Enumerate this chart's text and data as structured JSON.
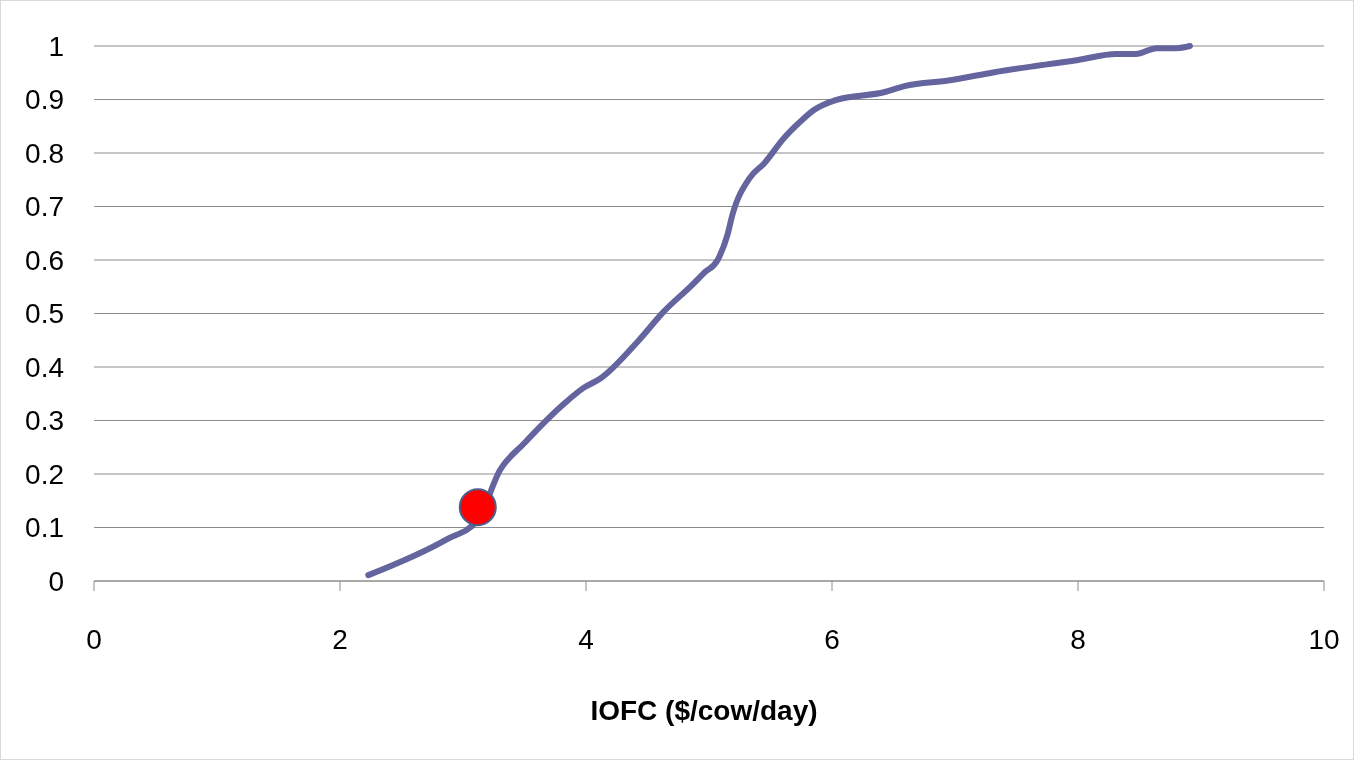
{
  "chart_data": {
    "type": "line",
    "xlabel": "IOFC ($/cow/day)",
    "xlim": [
      0,
      10
    ],
    "xticks": [
      0,
      2,
      4,
      6,
      8,
      10
    ],
    "ylim": [
      0,
      1
    ],
    "yticks": [
      0,
      0.1,
      0.2,
      0.3,
      0.4,
      0.5,
      0.6,
      0.7,
      0.8,
      0.9,
      1
    ],
    "grid": "y",
    "marker": "none",
    "line_style": "solid",
    "series": [
      {
        "color": "#64649e",
        "x": [
          2.23,
          2.86,
          3.12,
          3.3,
          3.5,
          3.81,
          3.98,
          4.12,
          4.43,
          4.63,
          4.87,
          4.96,
          5.07,
          5.15,
          5.19,
          5.33,
          5.45,
          5.61,
          5.73,
          5.85,
          6.03,
          6.43,
          6.59,
          6.96,
          7.32,
          8.0,
          8.31,
          8.47,
          8.64,
          8.8,
          8.91
        ],
        "values": [
          0.011,
          0.077,
          0.114,
          0.207,
          0.258,
          0.329,
          0.361,
          0.379,
          0.45,
          0.503,
          0.555,
          0.576,
          0.6,
          0.647,
          0.684,
          0.753,
          0.781,
          0.828,
          0.856,
          0.88,
          0.899,
          0.914,
          0.925,
          0.936,
          0.951,
          0.974,
          0.985,
          0.985,
          0.996,
          0.996,
          1.0
        ]
      },
      {
        "type": "scatter",
        "color": "#ff0000",
        "marker": "circle",
        "x": [
          3.12
        ],
        "values": [
          0.138
        ]
      }
    ]
  }
}
